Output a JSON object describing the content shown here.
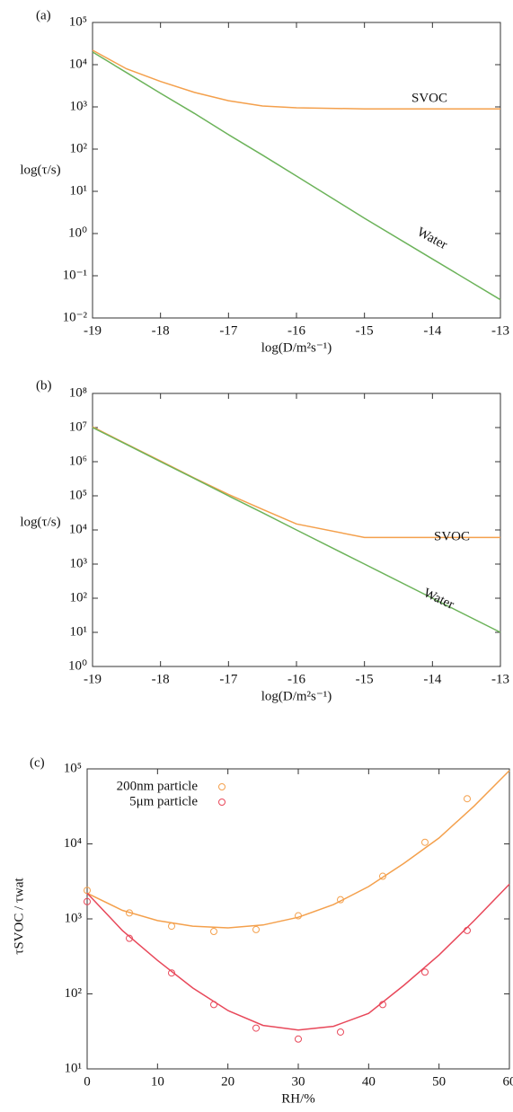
{
  "chart_data": [
    {
      "type": "line",
      "label": "(a)",
      "x_label": "log(D/m²s⁻¹)",
      "y_label": "log(τ/s)",
      "log_y": true,
      "xlim": [
        -19,
        -13
      ],
      "xticks": [
        -19,
        -18,
        -17,
        -16,
        -15,
        -14,
        -13
      ],
      "ylim": [
        0.01,
        100000
      ],
      "yticks": [
        {
          "value": 0.01,
          "label": "10⁻²"
        },
        {
          "value": 0.1,
          "label": "10⁻¹"
        },
        {
          "value": 1,
          "label": "10⁰"
        },
        {
          "value": 10,
          "label": "10¹"
        },
        {
          "value": 100,
          "label": "10²"
        },
        {
          "value": 1000,
          "label": "10³"
        },
        {
          "value": 10000,
          "label": "10⁴"
        },
        {
          "value": 100000,
          "label": "10⁵"
        }
      ],
      "x": [
        -19,
        -18.5,
        -18,
        -17.5,
        -17,
        -16.5,
        -16,
        -15,
        -14,
        -13
      ],
      "series": [
        {
          "name": "SVOC",
          "color": "#f4a04c",
          "values": [
            22000,
            8000,
            4000,
            2200,
            1400,
            1050,
            950,
            900,
            900,
            900
          ]
        },
        {
          "name": "Water",
          "color": "#6cb35a",
          "values": [
            20000,
            6500,
            2100,
            700,
            220,
            72,
            23,
            2.3,
            0.25,
            0.027
          ]
        }
      ]
    },
    {
      "type": "line",
      "label": "(b)",
      "x_label": "log(D/m²s⁻¹)",
      "y_label": "log(τ/s)",
      "log_y": true,
      "xlim": [
        -19,
        -13
      ],
      "xticks": [
        -19,
        -18,
        -17,
        -16,
        -15,
        -14,
        -13
      ],
      "ylim": [
        1,
        100000000
      ],
      "yticks": [
        {
          "value": 1,
          "label": "10⁰"
        },
        {
          "value": 10,
          "label": "10¹"
        },
        {
          "value": 100,
          "label": "10²"
        },
        {
          "value": 1000,
          "label": "10³"
        },
        {
          "value": 10000,
          "label": "10⁴"
        },
        {
          "value": 100000,
          "label": "10⁵"
        },
        {
          "value": 1000000,
          "label": "10⁶"
        },
        {
          "value": 10000000,
          "label": "10⁷"
        },
        {
          "value": 100000000,
          "label": "10⁸"
        }
      ],
      "x": [
        -19,
        -18.5,
        -18,
        -17.5,
        -17,
        -16.5,
        -16,
        -15,
        -14,
        -13
      ],
      "series": [
        {
          "name": "SVOC",
          "color": "#f4a04c",
          "values": [
            10500000,
            3300000,
            1050000,
            330000,
            110000,
            40000,
            15000,
            6000,
            6000,
            6000
          ]
        },
        {
          "name": "Water",
          "color": "#6cb35a",
          "values": [
            10000000,
            3200000,
            1000000,
            320000,
            100000,
            32000,
            10000,
            1000,
            100,
            10
          ]
        }
      ]
    },
    {
      "type": "scatter",
      "label": "(c)",
      "x_label": "RH/%",
      "y_label": "τSVOC / τwat",
      "log_y": true,
      "xlim": [
        0,
        60
      ],
      "xticks": [
        0,
        10,
        20,
        30,
        40,
        50,
        60
      ],
      "ylim": [
        10,
        100000
      ],
      "yticks": [
        {
          "value": 10,
          "label": "10¹"
        },
        {
          "value": 100,
          "label": "10²"
        },
        {
          "value": 1000,
          "label": "10³"
        },
        {
          "value": 10000,
          "label": "10⁴"
        },
        {
          "value": 100000,
          "label": "10⁵"
        }
      ],
      "x": [
        0,
        6,
        12,
        18,
        24,
        30,
        36,
        42,
        48,
        54
      ],
      "fit_x": [
        0,
        5,
        10,
        15,
        20,
        25,
        30,
        35,
        40,
        45,
        50,
        55,
        60
      ],
      "series": [
        {
          "name": "200nm particle",
          "color": "#f4a04c",
          "values": [
            2400,
            1200,
            800,
            680,
            720,
            1100,
            1800,
            3700,
            10500,
            40000
          ],
          "fit_values": [
            2200,
            1300,
            950,
            800,
            760,
            830,
            1050,
            1550,
            2700,
            5500,
            12000,
            32000,
            95000
          ]
        },
        {
          "name": "5μm particle",
          "color": "#e8485a",
          "values": [
            1700,
            550,
            190,
            72,
            35,
            25,
            31,
            72,
            195,
            700
          ],
          "fit_values": [
            2200,
            700,
            280,
            120,
            60,
            38,
            33,
            37,
            55,
            130,
            330,
            950,
            2900
          ]
        }
      ]
    }
  ]
}
